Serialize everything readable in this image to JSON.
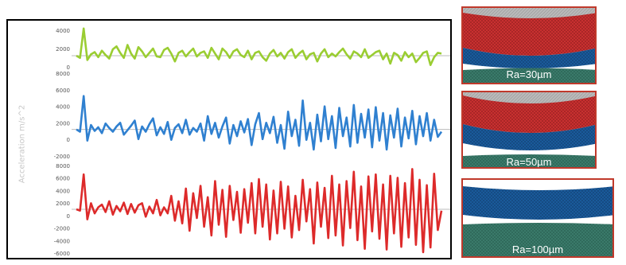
{
  "chart_data": {
    "type": "line",
    "ylabel": "Acceleration m/s^2",
    "grid": false,
    "legend": "none",
    "colors": [
      "#9acd32",
      "#2f80d0",
      "#dd2a2a"
    ],
    "series": [
      {
        "name": "Ra=30µm",
        "color": "#9acd32",
        "ylim": [
          -2000,
          4000
        ],
        "yticks": [
          "4000",
          "2000",
          "0"
        ],
        "values": [
          0,
          -300,
          3800,
          -600,
          200,
          500,
          -200,
          700,
          100,
          -400,
          900,
          1300,
          400,
          -300,
          1500,
          300,
          -400,
          1200,
          600,
          -200,
          400,
          1000,
          -100,
          -200,
          800,
          1100,
          300,
          -800,
          400,
          700,
          -100,
          500,
          1000,
          -100,
          400,
          600,
          -300,
          1100,
          300,
          -500,
          1000,
          500,
          -300,
          600,
          900,
          100,
          -200,
          700,
          -500,
          400,
          600,
          -200,
          -700,
          300,
          800,
          -100,
          400,
          -400,
          500,
          900,
          -300,
          300,
          700,
          -500,
          200,
          400,
          -800,
          300,
          900,
          -200,
          300,
          -100,
          500,
          1000,
          200,
          -400,
          600,
          300,
          -200,
          900,
          -300,
          100,
          500,
          700,
          -500,
          300,
          -1100,
          400,
          100,
          -700,
          500,
          -200,
          300,
          -900,
          -300,
          400,
          600,
          -1300,
          -200,
          400,
          300
        ]
      },
      {
        "name": "Ra=50µm",
        "color": "#2f80d0",
        "ylim": [
          -4000,
          8000
        ],
        "yticks": [
          "8000",
          "6000",
          "4000",
          "2000",
          "0",
          "-2000"
        ],
        "values": [
          0,
          -300,
          4500,
          -1500,
          600,
          -200,
          300,
          -500,
          800,
          200,
          -300,
          400,
          900,
          -700,
          -100,
          500,
          1200,
          -1300,
          400,
          -300,
          700,
          1500,
          -800,
          300,
          -600,
          1000,
          -1400,
          200,
          700,
          -500,
          1300,
          -700,
          200,
          -300,
          800,
          -1500,
          1800,
          -600,
          900,
          -1100,
          400,
          1600,
          -1900,
          600,
          -900,
          1100,
          -400,
          1400,
          -2100,
          700,
          2200,
          -1300,
          900,
          -500,
          1700,
          -1800,
          600,
          -2600,
          2400,
          -900,
          1300,
          -2200,
          3900,
          -1400,
          900,
          -2700,
          2000,
          -1600,
          3100,
          -1300,
          1800,
          -2500,
          2900,
          -900,
          1600,
          -2300,
          3300,
          -1800,
          2100,
          -1100,
          2700,
          -2400,
          3000,
          -1500,
          2200,
          -2700,
          1900,
          -1100,
          2800,
          -2300,
          1600,
          -1200,
          2500,
          -2000,
          1800,
          -900,
          2200,
          -1500,
          1300,
          -1000,
          -300
        ]
      },
      {
        "name": "Ra=100µm",
        "color": "#dd2a2a",
        "ylim": [
          -7000,
          7000
        ],
        "yticks": [
          "8000",
          "6000",
          "4000",
          "2000",
          "0",
          "-2000",
          "-4000",
          "-6000"
        ],
        "values": [
          0,
          -200,
          5200,
          -1500,
          900,
          -600,
          300,
          700,
          -400,
          1200,
          -800,
          500,
          -300,
          1000,
          -700,
          800,
          -500,
          600,
          900,
          -1100,
          400,
          -600,
          1400,
          -900,
          300,
          -600,
          2000,
          -1700,
          1200,
          -2100,
          3100,
          -3200,
          2400,
          -1300,
          3500,
          -2600,
          1800,
          -3900,
          4200,
          -2300,
          2900,
          -4100,
          3500,
          -1600,
          2600,
          -3500,
          3000,
          -2000,
          3900,
          -3600,
          4500,
          -2600,
          3700,
          -4500,
          2800,
          -3600,
          4100,
          -2900,
          3400,
          -4200,
          2000,
          -3100,
          4400,
          -1800,
          3000,
          -5100,
          4000,
          -2600,
          3200,
          -4300,
          5000,
          -3900,
          3700,
          -5400,
          4200,
          -2800,
          5600,
          -4600,
          3400,
          -5900,
          4900,
          -3300,
          5200,
          -4400,
          3700,
          -6000,
          5000,
          -3600,
          4700,
          -5600,
          3900,
          -4200,
          6000,
          -5300,
          4400,
          -6400,
          3600,
          -5700,
          5300,
          -3100,
          -200
        ]
      }
    ],
    "annotations": [
      "Ra=30µm",
      "Ra=50µm",
      "Ra=100µm"
    ]
  },
  "panels": [
    {
      "label": "Ra=30µm"
    },
    {
      "label": "Ra=50µm"
    },
    {
      "label": "Ra=100µm"
    }
  ]
}
